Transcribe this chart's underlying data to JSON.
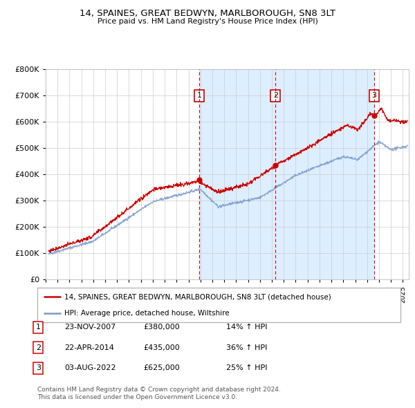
{
  "title": "14, SPAINES, GREAT BEDWYN, MARLBOROUGH, SN8 3LT",
  "subtitle": "Price paid vs. HM Land Registry's House Price Index (HPI)",
  "property_label": "14, SPAINES, GREAT BEDWYN, MARLBOROUGH, SN8 3LT (detached house)",
  "hpi_label": "HPI: Average price, detached house, Wiltshire",
  "footer1": "Contains HM Land Registry data © Crown copyright and database right 2024.",
  "footer2": "This data is licensed under the Open Government Licence v3.0.",
  "transactions": [
    {
      "num": 1,
      "date": "23-NOV-2007",
      "price": "£380,000",
      "pct": "14% ↑ HPI"
    },
    {
      "num": 2,
      "date": "22-APR-2014",
      "price": "£435,000",
      "pct": "36% ↑ HPI"
    },
    {
      "num": 3,
      "date": "03-AUG-2022",
      "price": "£625,000",
      "pct": "25% ↑ HPI"
    }
  ],
  "transaction_dates_dec": [
    2007.896,
    2014.31,
    2022.587
  ],
  "transaction_prices": [
    380000,
    435000,
    625000
  ],
  "ylim": [
    0,
    800000
  ],
  "xlim_start": 1995.25,
  "xlim_end": 2025.5,
  "yticks": [
    0,
    100000,
    200000,
    300000,
    400000,
    500000,
    600000,
    700000,
    800000
  ],
  "red_color": "#cc0000",
  "blue_color": "#7799cc",
  "shade_color": "#ddeeff",
  "grid_color": "#cccccc",
  "background_color": "#ffffff"
}
